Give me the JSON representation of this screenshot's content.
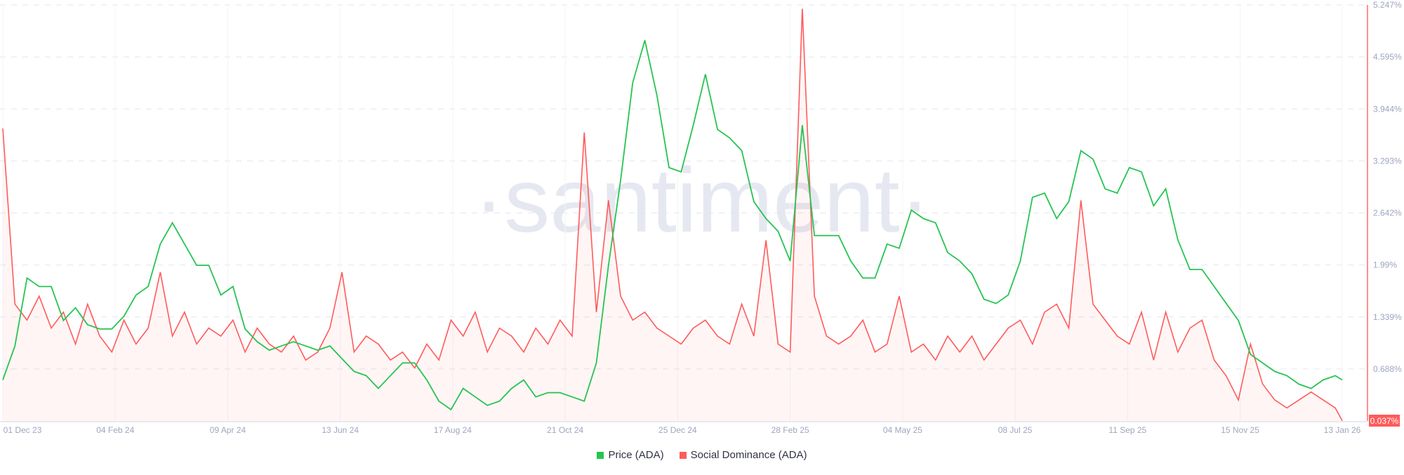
{
  "chart_data": {
    "type": "line",
    "title": "",
    "watermark": "·santiment·",
    "legend_position": "bottom",
    "grid": true,
    "x_tick_labels": [
      "01 Dec 23",
      "04 Feb 24",
      "09 Apr 24",
      "13 Jun 24",
      "17 Aug 24",
      "21 Oct 24",
      "25 Dec 24",
      "28 Feb 25",
      "04 May 25",
      "08 Jul 25",
      "11 Sep 25",
      "15 Nov 25",
      "13 Jan 26"
    ],
    "x_tick_dates": [
      "2023-12-01",
      "2024-02-04",
      "2024-04-09",
      "2024-06-13",
      "2024-08-17",
      "2024-10-21",
      "2024-12-25",
      "2025-02-28",
      "2025-05-04",
      "2025-07-08",
      "2025-09-11",
      "2025-11-15",
      "2026-01-13"
    ],
    "y_axis": {
      "side": "right",
      "series": "Social Dominance (ADA)",
      "tick_labels": [
        "5.247%",
        "4.595%",
        "3.944%",
        "3.293%",
        "2.642%",
        "1.99%",
        "1.339%",
        "0.688%",
        "0.037%"
      ],
      "ylim": [
        0.037,
        5.247
      ],
      "current_value_label": "0.037%"
    },
    "x": [
      "2023-12-01",
      "2023-12-08",
      "2023-12-15",
      "2023-12-22",
      "2023-12-29",
      "2024-01-05",
      "2024-01-12",
      "2024-01-19",
      "2024-01-26",
      "2024-02-02",
      "2024-02-09",
      "2024-02-16",
      "2024-02-23",
      "2024-03-01",
      "2024-03-08",
      "2024-03-15",
      "2024-03-22",
      "2024-03-29",
      "2024-04-05",
      "2024-04-12",
      "2024-04-19",
      "2024-04-26",
      "2024-05-03",
      "2024-05-10",
      "2024-05-17",
      "2024-05-24",
      "2024-05-31",
      "2024-06-07",
      "2024-06-14",
      "2024-06-21",
      "2024-06-28",
      "2024-07-05",
      "2024-07-12",
      "2024-07-19",
      "2024-07-26",
      "2024-08-02",
      "2024-08-09",
      "2024-08-16",
      "2024-08-23",
      "2024-08-30",
      "2024-09-06",
      "2024-09-13",
      "2024-09-20",
      "2024-09-27",
      "2024-10-04",
      "2024-10-11",
      "2024-10-18",
      "2024-10-25",
      "2024-11-01",
      "2024-11-08",
      "2024-11-15",
      "2024-11-22",
      "2024-11-29",
      "2024-12-06",
      "2024-12-13",
      "2024-12-20",
      "2024-12-27",
      "2025-01-03",
      "2025-01-10",
      "2025-01-17",
      "2025-01-24",
      "2025-01-31",
      "2025-02-07",
      "2025-02-14",
      "2025-02-21",
      "2025-02-28",
      "2025-03-07",
      "2025-03-14",
      "2025-03-21",
      "2025-03-28",
      "2025-04-04",
      "2025-04-11",
      "2025-04-18",
      "2025-04-25",
      "2025-05-02",
      "2025-05-09",
      "2025-05-16",
      "2025-05-23",
      "2025-05-30",
      "2025-06-06",
      "2025-06-13",
      "2025-06-20",
      "2025-06-27",
      "2025-07-04",
      "2025-07-11",
      "2025-07-18",
      "2025-07-25",
      "2025-08-01",
      "2025-08-08",
      "2025-08-15",
      "2025-08-22",
      "2025-08-29",
      "2025-09-05",
      "2025-09-12",
      "2025-09-19",
      "2025-09-26",
      "2025-10-03",
      "2025-10-10",
      "2025-10-17",
      "2025-10-24",
      "2025-10-31",
      "2025-11-07",
      "2025-11-14",
      "2025-11-21",
      "2025-11-28",
      "2025-12-05",
      "2025-12-12",
      "2025-12-19",
      "2025-12-26",
      "2026-01-02",
      "2026-01-09",
      "2026-01-13"
    ],
    "series": [
      {
        "name": "Price (ADA)",
        "color": "#26c451",
        "unit": "USD",
        "values": [
          0.38,
          0.46,
          0.62,
          0.6,
          0.6,
          0.52,
          0.55,
          0.51,
          0.5,
          0.5,
          0.53,
          0.58,
          0.6,
          0.7,
          0.75,
          0.7,
          0.65,
          0.65,
          0.58,
          0.6,
          0.5,
          0.47,
          0.45,
          0.46,
          0.47,
          0.46,
          0.45,
          0.46,
          0.43,
          0.4,
          0.39,
          0.36,
          0.39,
          0.42,
          0.42,
          0.38,
          0.33,
          0.31,
          0.36,
          0.34,
          0.32,
          0.33,
          0.36,
          0.38,
          0.34,
          0.35,
          0.35,
          0.34,
          0.33,
          0.42,
          0.65,
          0.85,
          1.08,
          1.18,
          1.05,
          0.88,
          0.87,
          0.98,
          1.1,
          0.97,
          0.95,
          0.92,
          0.8,
          0.76,
          0.73,
          0.66,
          0.98,
          0.72,
          0.72,
          0.72,
          0.66,
          0.62,
          0.62,
          0.7,
          0.69,
          0.78,
          0.76,
          0.75,
          0.68,
          0.66,
          0.63,
          0.57,
          0.56,
          0.58,
          0.66,
          0.81,
          0.82,
          0.76,
          0.8,
          0.92,
          0.9,
          0.83,
          0.82,
          0.88,
          0.87,
          0.79,
          0.83,
          0.71,
          0.64,
          0.64,
          0.6,
          0.56,
          0.52,
          0.44,
          0.42,
          0.4,
          0.39,
          0.37,
          0.36,
          0.38,
          0.39,
          0.38
        ]
      },
      {
        "name": "Social Dominance (ADA)",
        "color": "#ff5b5b",
        "unit": "%",
        "values": [
          3.7,
          1.5,
          1.3,
          1.6,
          1.2,
          1.4,
          1.0,
          1.5,
          1.1,
          0.9,
          1.3,
          1.0,
          1.2,
          1.9,
          1.1,
          1.4,
          1.0,
          1.2,
          1.1,
          1.3,
          0.9,
          1.2,
          1.0,
          0.9,
          1.1,
          0.8,
          0.9,
          1.2,
          1.9,
          0.9,
          1.1,
          1.0,
          0.8,
          0.9,
          0.7,
          1.0,
          0.8,
          1.3,
          1.1,
          1.4,
          0.9,
          1.2,
          1.1,
          0.9,
          1.2,
          1.0,
          1.3,
          1.1,
          3.65,
          1.4,
          2.8,
          1.6,
          1.3,
          1.4,
          1.2,
          1.1,
          1.0,
          1.2,
          1.3,
          1.1,
          1.0,
          1.5,
          1.1,
          2.3,
          1.0,
          0.9,
          5.2,
          1.6,
          1.1,
          1.0,
          1.1,
          1.3,
          0.9,
          1.0,
          1.6,
          0.9,
          1.0,
          0.8,
          1.1,
          0.9,
          1.1,
          0.8,
          1.0,
          1.2,
          1.3,
          1.0,
          1.4,
          1.5,
          1.2,
          2.8,
          1.5,
          1.3,
          1.1,
          1.0,
          1.4,
          0.8,
          1.4,
          0.9,
          1.2,
          1.3,
          0.8,
          0.6,
          0.3,
          1.0,
          0.5,
          0.3,
          0.2,
          0.3,
          0.4,
          0.3,
          0.2,
          0.04
        ]
      }
    ]
  }
}
